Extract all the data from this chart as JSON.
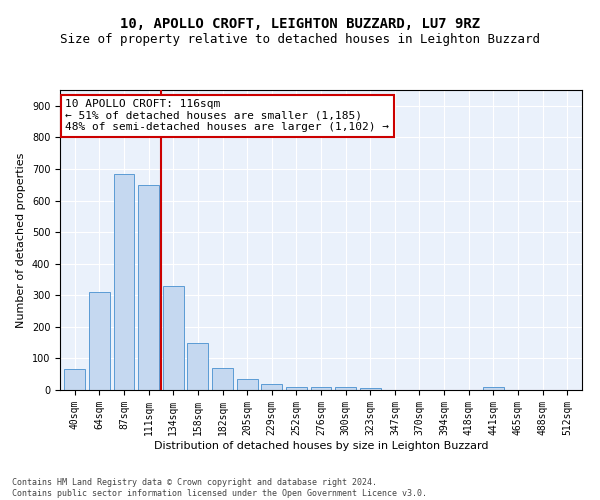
{
  "title": "10, APOLLO CROFT, LEIGHTON BUZZARD, LU7 9RZ",
  "subtitle": "Size of property relative to detached houses in Leighton Buzzard",
  "xlabel": "Distribution of detached houses by size in Leighton Buzzard",
  "ylabel": "Number of detached properties",
  "bar_labels": [
    "40sqm",
    "64sqm",
    "87sqm",
    "111sqm",
    "134sqm",
    "158sqm",
    "182sqm",
    "205sqm",
    "229sqm",
    "252sqm",
    "276sqm",
    "300sqm",
    "323sqm",
    "347sqm",
    "370sqm",
    "394sqm",
    "418sqm",
    "441sqm",
    "465sqm",
    "488sqm",
    "512sqm"
  ],
  "bar_values": [
    65,
    310,
    685,
    650,
    330,
    150,
    70,
    35,
    20,
    10,
    10,
    10,
    5,
    0,
    0,
    0,
    0,
    10,
    0,
    0,
    0
  ],
  "bar_color": "#c5d8f0",
  "bar_edge_color": "#5b9bd5",
  "vline_x": 3.5,
  "vline_color": "#cc0000",
  "annotation_text": "10 APOLLO CROFT: 116sqm\n← 51% of detached houses are smaller (1,185)\n48% of semi-detached houses are larger (1,102) →",
  "annotation_box_color": "#ffffff",
  "annotation_box_edge": "#cc0000",
  "ylim": [
    0,
    950
  ],
  "yticks": [
    0,
    100,
    200,
    300,
    400,
    500,
    600,
    700,
    800,
    900
  ],
  "bg_color": "#eaf1fb",
  "footer": "Contains HM Land Registry data © Crown copyright and database right 2024.\nContains public sector information licensed under the Open Government Licence v3.0.",
  "title_fontsize": 10,
  "subtitle_fontsize": 9,
  "xlabel_fontsize": 8,
  "ylabel_fontsize": 8,
  "tick_fontsize": 7,
  "annotation_fontsize": 8,
  "footer_fontsize": 6
}
